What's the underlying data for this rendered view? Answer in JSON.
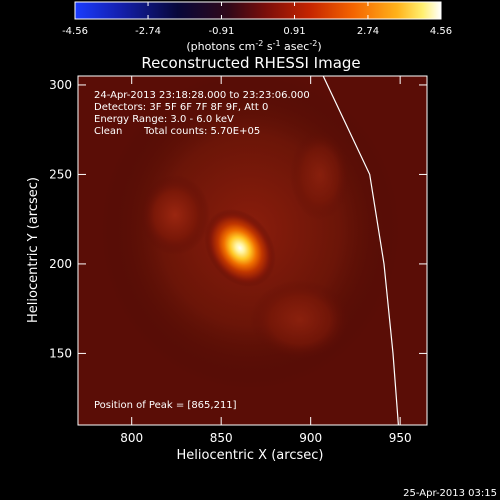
{
  "colorbar": {
    "ticks": [
      "-4.56",
      "-2.74",
      "-0.91",
      "0.91",
      "2.74",
      "4.56"
    ],
    "tick_values": [
      -4.56,
      -2.74,
      -0.91,
      0.91,
      2.74,
      4.56
    ],
    "range": [
      -4.56,
      4.56
    ],
    "units_prefix": "(photons cm",
    "units_exp1": "-2",
    "units_mid1": " s",
    "units_exp2": "-1",
    "units_mid2": " asec",
    "units_exp3": "-2",
    "units_suffix": ")",
    "colormap": "std-gamma-II (blue-black-red-yellow-white)"
  },
  "plot": {
    "title": "Reconstructed RHESSI Image",
    "xlabel": "Heliocentric X (arcsec)",
    "ylabel": "Heliocentric Y (arcsec)",
    "xlim": [
      770,
      965
    ],
    "ylim": [
      110,
      305
    ],
    "xticks": [
      800,
      850,
      900,
      950
    ],
    "yticks": [
      150,
      200,
      250,
      300
    ],
    "peak_xy": [
      865,
      211
    ],
    "limb_arcsec": [
      [
        907,
        305
      ],
      [
        933,
        250
      ],
      [
        941,
        200
      ],
      [
        946,
        150
      ],
      [
        949,
        110
      ]
    ]
  },
  "info": {
    "line1": "24-Apr-2013 23:18:28.000 to 23:23:06.000",
    "line2": "Detectors: 3F 5F 6F 7F 8F 9F, Att 0",
    "line3": "Energy Range: 3.0 - 6.0 keV",
    "line4a": "Clean",
    "line4b": "Total counts: 5.70E+05",
    "peak_label": "Position of Peak = [865,211]"
  },
  "footer": {
    "timestamp": "25-Apr-2013 03:15"
  },
  "colors": {
    "background": "#000000",
    "text": "#ffffff",
    "limb": "#ffffff",
    "map_dark": "#5a0c06",
    "map_peak": "#fffdf0"
  }
}
